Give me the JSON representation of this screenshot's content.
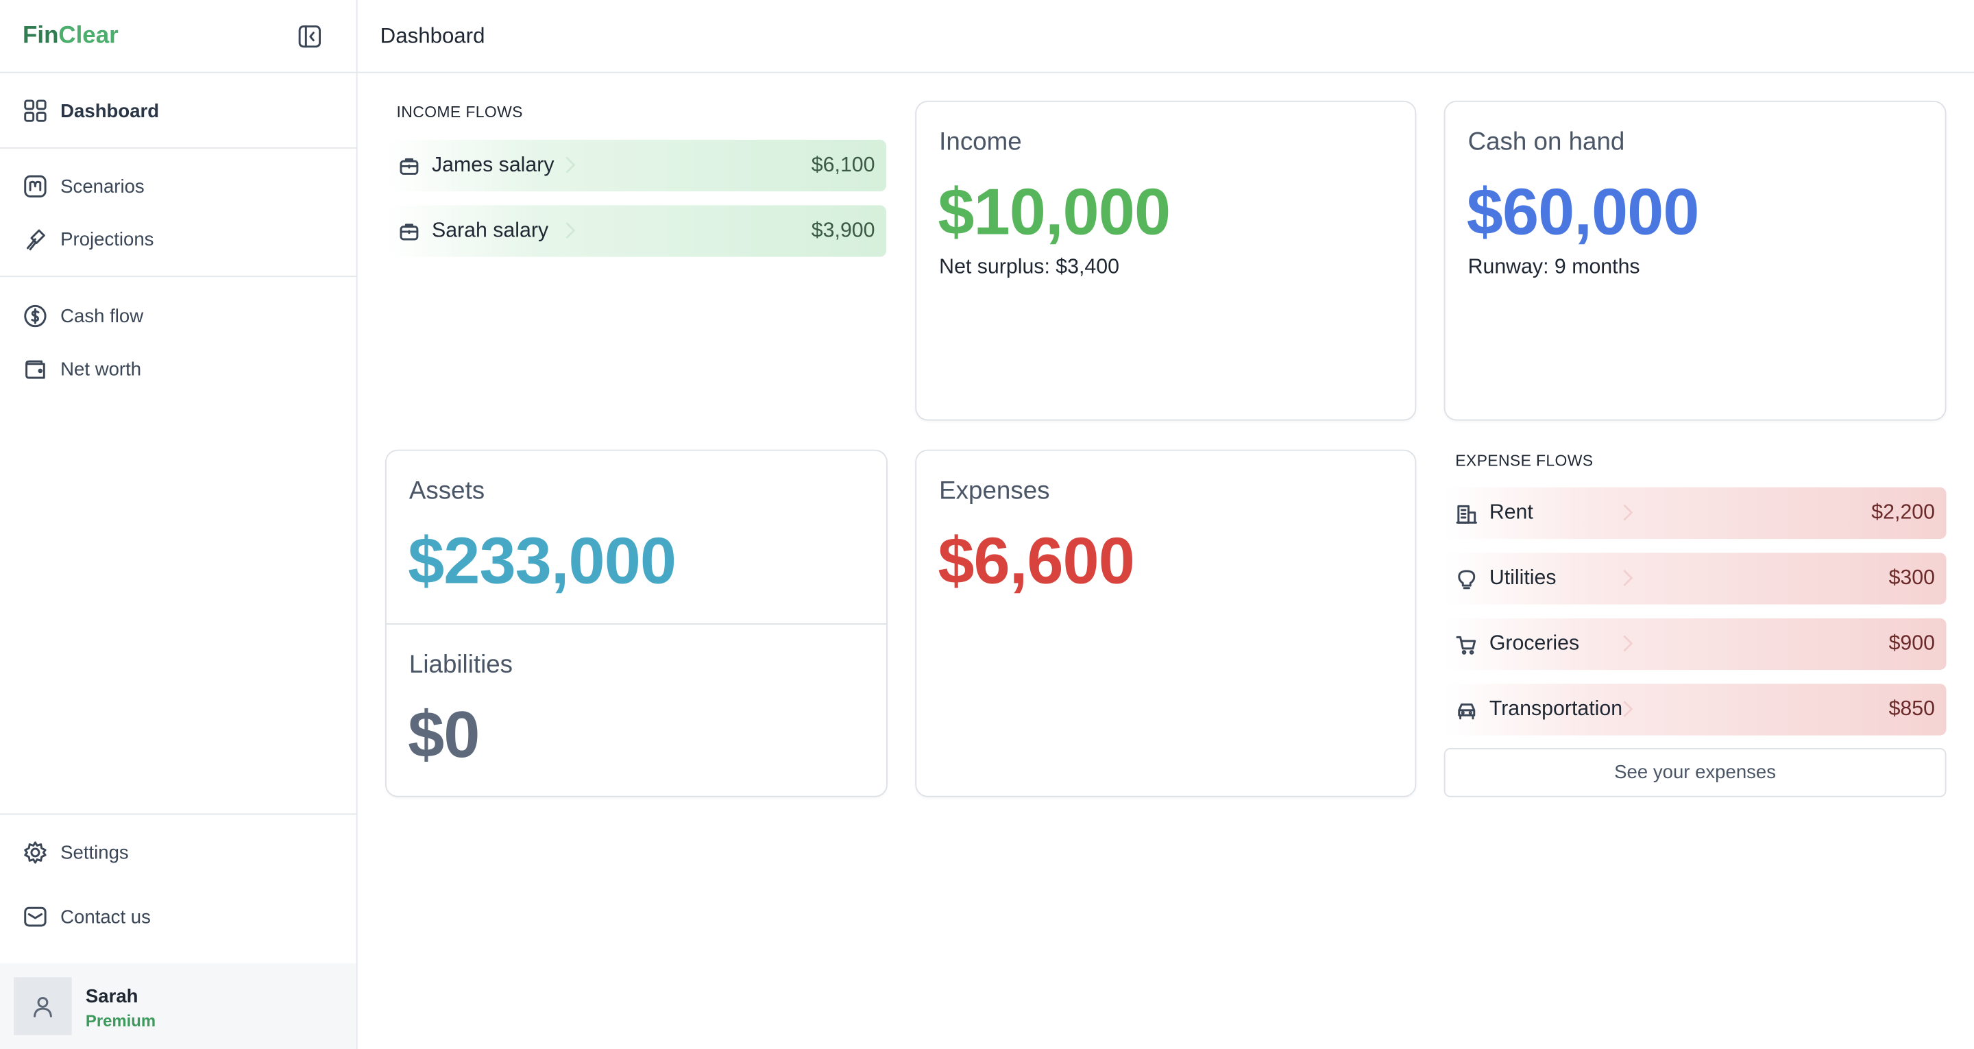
{
  "sidebar": {
    "brand": {
      "first": "Fin",
      "second": "Clear"
    },
    "nav": [
      "Dashboard",
      "Scenarios",
      "Projections",
      "Cash flow",
      "Net worth"
    ],
    "footer_nav": [
      "Settings",
      "Contact us"
    ],
    "user": {
      "name": "Sarah",
      "plan": "Premium"
    }
  },
  "header": {
    "title": "Dashboard"
  },
  "income_flows": {
    "title": "INCOME FLOWS",
    "items": [
      {
        "label": "James salary",
        "amount": "$6,100"
      },
      {
        "label": "Sarah salary",
        "amount": "$3,900"
      }
    ]
  },
  "income": {
    "title": "Income",
    "amount": "$10,000",
    "note": "Net surplus: $3,400"
  },
  "cash": {
    "title": "Cash on hand",
    "amount": "$60,000",
    "note": "Runway: 9 months"
  },
  "assets": {
    "title": "Assets",
    "amount": "$233,000"
  },
  "liabilities": {
    "title": "Liabilities",
    "amount": "$0"
  },
  "expenses": {
    "title": "Expenses",
    "amount": "$6,600"
  },
  "expense_flows": {
    "title": "EXPENSE FLOWS",
    "items": [
      {
        "label": "Rent",
        "amount": "$2,200"
      },
      {
        "label": "Utilities",
        "amount": "$300"
      },
      {
        "label": "Groceries",
        "amount": "$900"
      },
      {
        "label": "Transportation",
        "amount": "$850"
      }
    ],
    "button": "See your expenses"
  }
}
